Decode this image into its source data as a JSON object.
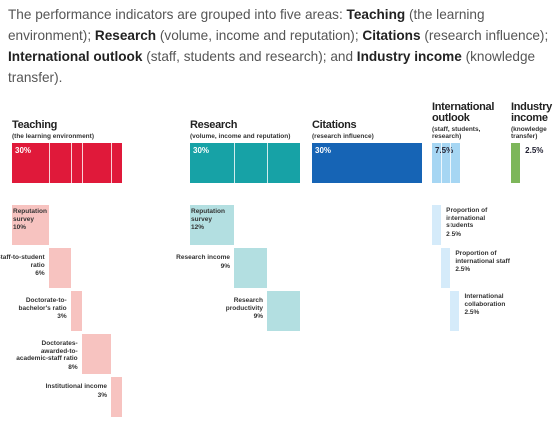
{
  "intro": [
    {
      "text": "The performance indicators are grouped into five areas: ",
      "bold": false
    },
    {
      "text": "Teaching",
      "bold": true
    },
    {
      "text": " (the learning environment); ",
      "bold": false
    },
    {
      "text": "Research",
      "bold": true
    },
    {
      "text": " (volume, income and reputation); ",
      "bold": false
    },
    {
      "text": "Citations",
      "bold": true
    },
    {
      "text": " (research influence); ",
      "bold": false
    },
    {
      "text": "International outlook",
      "bold": true
    },
    {
      "text": " (staff, students and research); and ",
      "bold": false
    },
    {
      "text": "Industry income",
      "bold": true
    },
    {
      "text": " (knowledge transfer).",
      "bold": false
    }
  ],
  "pillars": [
    {
      "title": "Teaching",
      "subtitle": "(the learning environment)",
      "weight": 30,
      "weight_label": "30%",
      "color": "#e0193a",
      "sub_color": "#f7c3c0",
      "indicators": [
        {
          "name": "Reputation survey",
          "weight": 10,
          "weight_label": "10%"
        },
        {
          "name": "Staff-to-student ratio",
          "weight": 6,
          "weight_label": "6%"
        },
        {
          "name": "Doctorate-to-bachelor's ratio",
          "weight": 3,
          "weight_label": "3%"
        },
        {
          "name": "Doctorates-awarded-to-academic-staff ratio",
          "weight": 8,
          "weight_label": "8%"
        },
        {
          "name": "Institutional income",
          "weight": 3,
          "weight_label": "3%"
        }
      ]
    },
    {
      "title": "Research",
      "subtitle": "(volume, income and reputation)",
      "weight": 30,
      "weight_label": "30%",
      "color": "#17a2a6",
      "sub_color": "#b3dfe1",
      "indicators": [
        {
          "name": "Reputation survey",
          "weight": 12,
          "weight_label": "12%"
        },
        {
          "name": "Research income",
          "weight": 9,
          "weight_label": "9%"
        },
        {
          "name": "Research productivity",
          "weight": 9,
          "weight_label": "9%"
        }
      ]
    },
    {
      "title": "Citations",
      "subtitle": "(research influence)",
      "weight": 30,
      "weight_label": "30%",
      "color": "#1664b5",
      "sub_color": "#1664b5",
      "indicators": []
    },
    {
      "title": "International outlook",
      "subtitle": "(staff, students, research)",
      "weight": 7.5,
      "weight_label": "7.5%",
      "color": "#a6d6f3",
      "sub_color": "#d5ebfa",
      "indicators": [
        {
          "name": "Proportion of international students",
          "weight": 2.5,
          "weight_label": "2.5%"
        },
        {
          "name": "Proportion of international staff",
          "weight": 2.5,
          "weight_label": "2.5%"
        },
        {
          "name": "International collaboration",
          "weight": 2.5,
          "weight_label": "2.5%"
        }
      ]
    },
    {
      "title": "Industry income",
      "subtitle": "(knowledge transfer)",
      "weight": 2.5,
      "weight_label": "2.5%",
      "color": "#7db65a",
      "sub_color": "#7db65a",
      "indicators": []
    }
  ]
}
